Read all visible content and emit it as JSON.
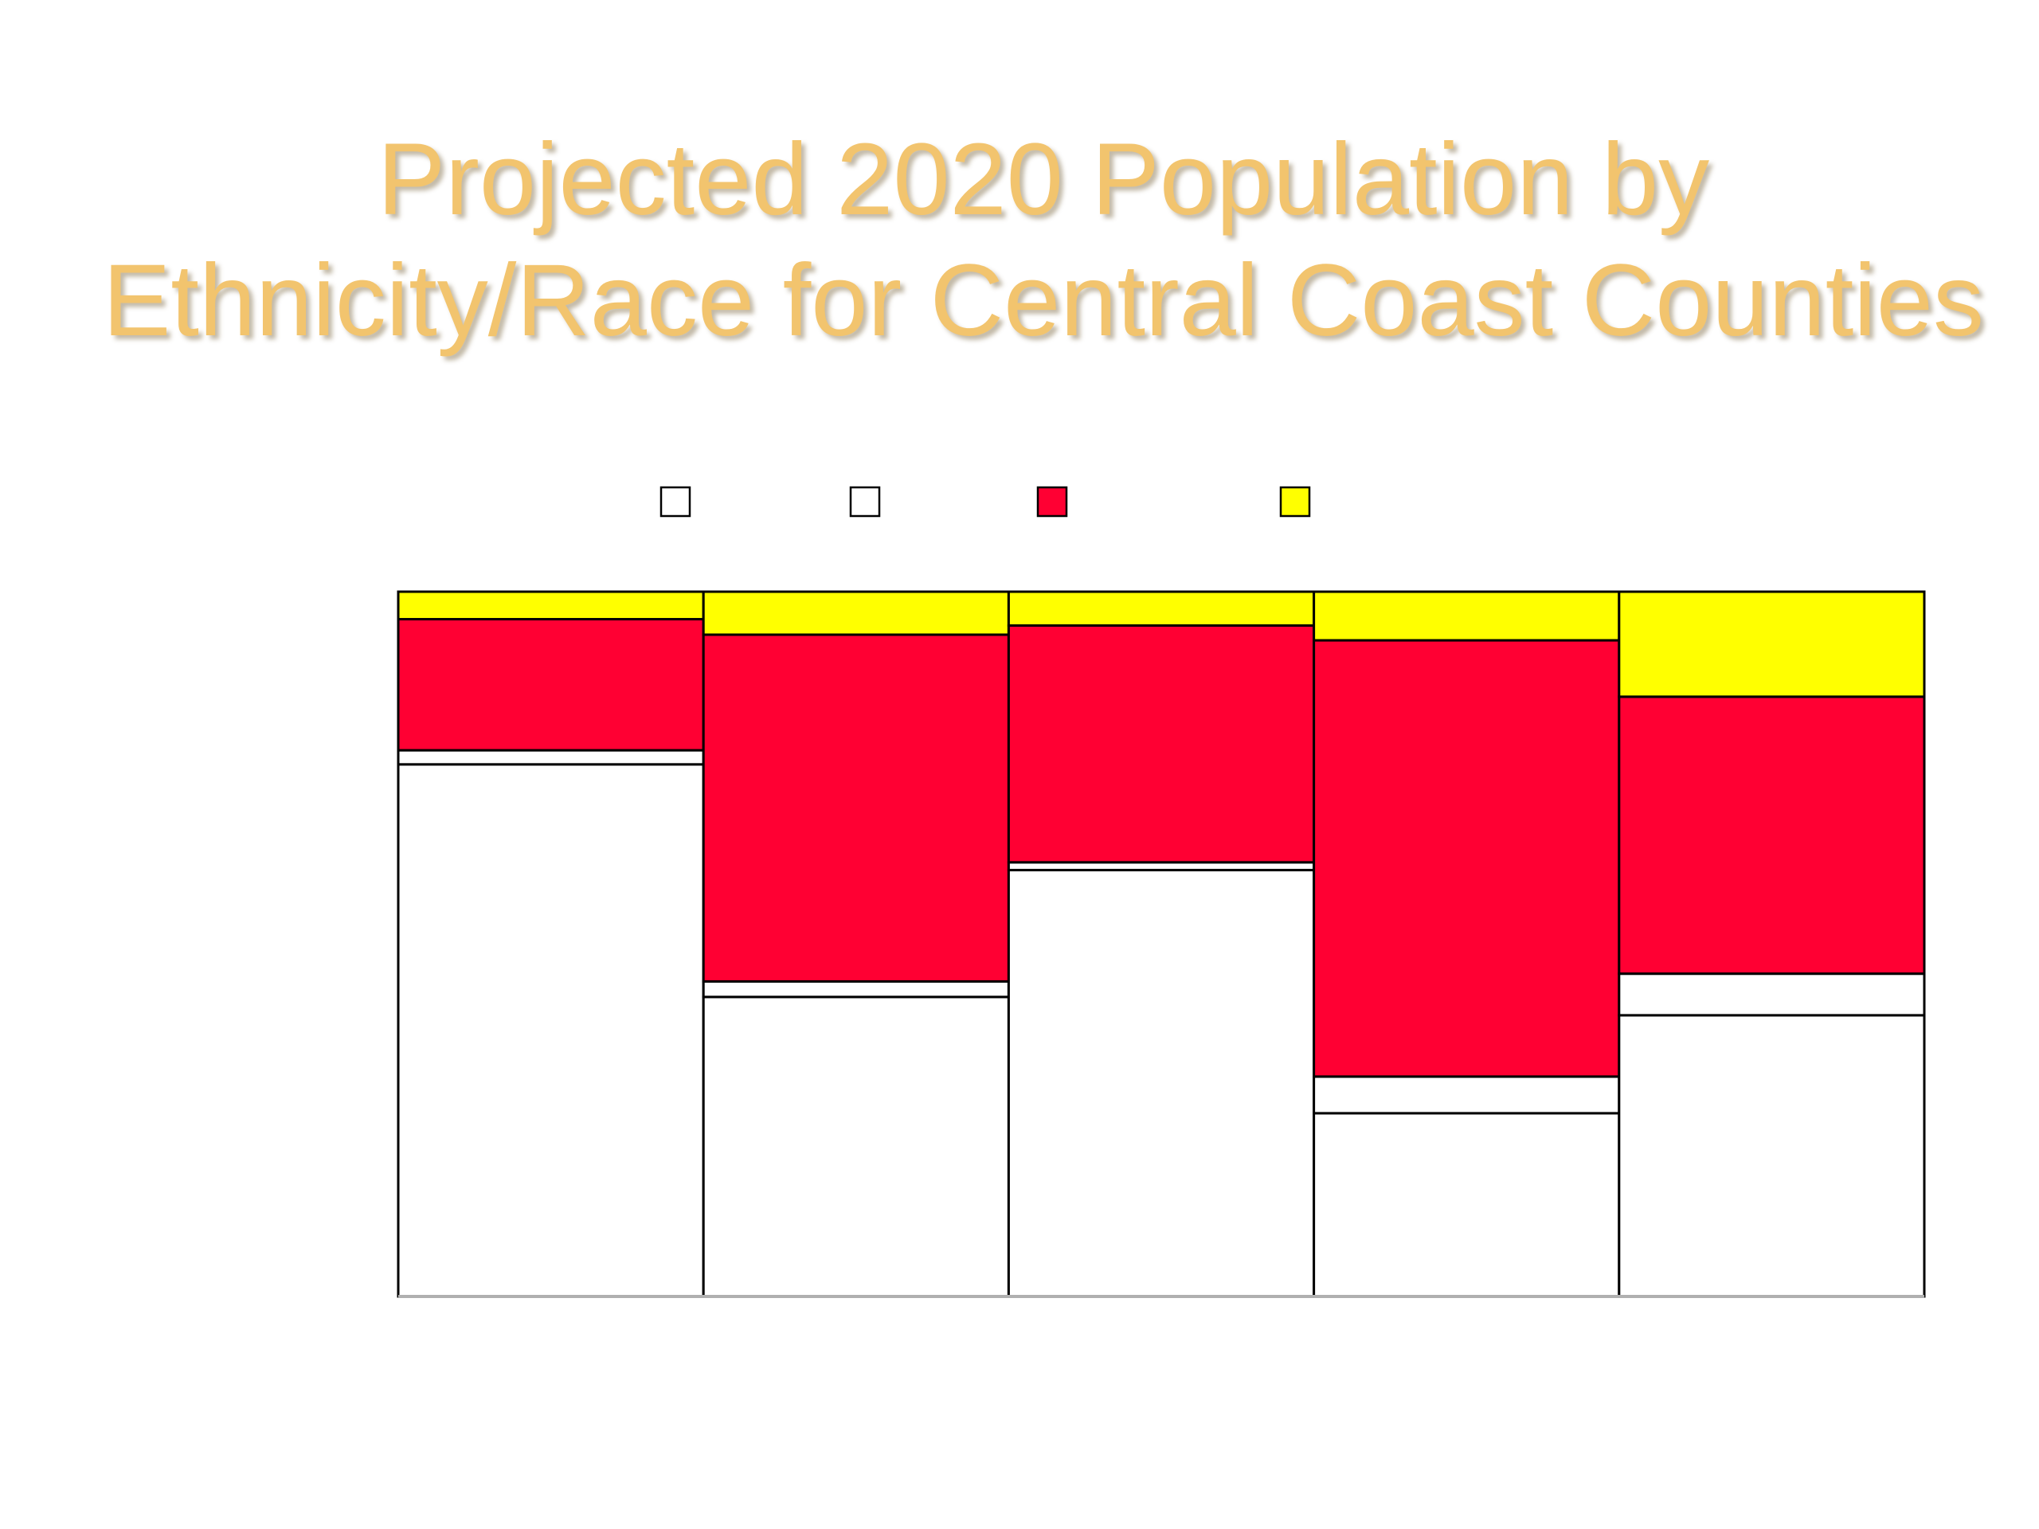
{
  "chart_data": {
    "type": "stacked_bar_100",
    "title": "Projected 2020 Population by Ethnicity/Race for Central Coast Counties",
    "categories": [
      null,
      null,
      null,
      null,
      null
    ],
    "series": [
      {
        "color": "#ffffff",
        "values": [
          75.5,
          42.5,
          60.5,
          26.0,
          39.9
        ]
      },
      {
        "color": "#ffffff",
        "values": [
          2.0,
          2.2,
          1.1,
          5.2,
          5.9
        ]
      },
      {
        "color": "#ff0033",
        "values": [
          18.6,
          49.2,
          33.6,
          61.9,
          39.3
        ]
      },
      {
        "color": "#ffff00",
        "values": [
          3.9,
          6.1,
          4.8,
          6.9,
          14.9
        ]
      }
    ],
    "ylim": [
      0,
      100
    ]
  }
}
